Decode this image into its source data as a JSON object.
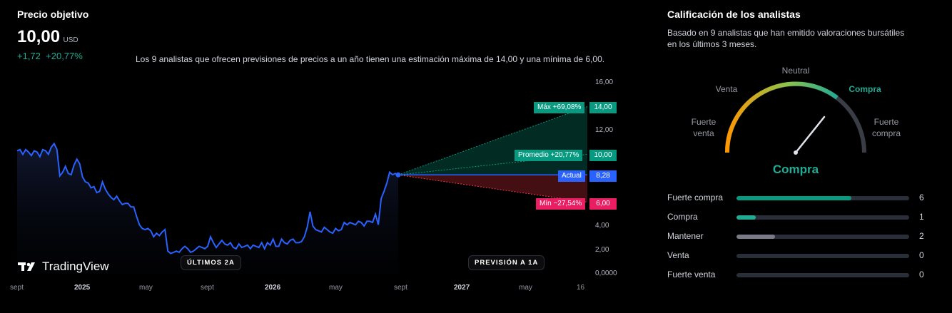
{
  "target": {
    "title": "Precio objetivo",
    "price": "10,00",
    "currency": "USD",
    "change_abs": "+1,72",
    "change_pct": "+20,77%",
    "note": "Los 9 analistas que ofrecen previsiones de precios a un año tienen una estimación máxima de 14,00 y una mínima de 6,00."
  },
  "chart": {
    "y_ticks": [
      "16,00",
      "12,00",
      "4,00",
      "2,00",
      "0,0000"
    ],
    "x_ticks": [
      {
        "label": "sept",
        "bold": false
      },
      {
        "label": "2025",
        "bold": true
      },
      {
        "label": "may",
        "bold": false
      },
      {
        "label": "sept",
        "bold": false
      },
      {
        "label": "2026",
        "bold": true
      },
      {
        "label": "may",
        "bold": false
      },
      {
        "label": "sept",
        "bold": false
      },
      {
        "label": "2027",
        "bold": true
      },
      {
        "label": "may",
        "bold": false
      },
      {
        "label": "16",
        "bold": false
      }
    ],
    "pill_past": "ÚLTIMOS 2A",
    "pill_forecast": "PREVISIÓN A 1A",
    "brand": "TradingView",
    "tags": {
      "max": {
        "label": "Máx +69,08%",
        "value": "14,00"
      },
      "avg": {
        "label": "Promedio +20,77%",
        "value": "10,00"
      },
      "current": {
        "label": "Actual",
        "value": "8,28"
      },
      "min": {
        "label": "Mín −27,54%",
        "value": "6,00"
      }
    },
    "colors": {
      "line": "#2962ff",
      "max": "#089981",
      "min": "#f23645",
      "current": "#2962ff"
    }
  },
  "chart_data": {
    "type": "line",
    "ylim": [
      0,
      16
    ],
    "series": [
      {
        "values": [
          10.3,
          10.4,
          10.0,
          10.4,
          10.2,
          9.9,
          10.3,
          10.2,
          9.8,
          10.4,
          10.3,
          10.0,
          10.6,
          10.9,
          10.4,
          8.2,
          8.5,
          9.0,
          8.4,
          8.3,
          9.1,
          9.6,
          9.2,
          8.1,
          7.7,
          7.6,
          7.2,
          7.3,
          6.8,
          6.9,
          7.7,
          7.1,
          6.7,
          6.4,
          6.2,
          6.5,
          6.1,
          5.8,
          5.9,
          5.9,
          5.6,
          5.6,
          4.8,
          4.1,
          3.8,
          3.7,
          3.8,
          3.6,
          3.1,
          3.4,
          3.2,
          3.5,
          3.7,
          1.9,
          1.7,
          1.8,
          1.9,
          1.8,
          2.1,
          2.3,
          2.1,
          1.8,
          1.9,
          2.1,
          2.3,
          2.2,
          2.1,
          2.3,
          3.1,
          2.6,
          2.2,
          2.5,
          2.8,
          2.5,
          2.4,
          2.6,
          2.2,
          2.1,
          2.5,
          2.2,
          2.3,
          2.4,
          2.1,
          2.4,
          2.3,
          2.2,
          2.6,
          2.1,
          2.6,
          2.4,
          2.9,
          2.3,
          2.3,
          2.9,
          2.6,
          2.5,
          2.8,
          2.9,
          2.6,
          2.6,
          2.7,
          3.1,
          3.9,
          5.2,
          4.0,
          3.7,
          3.6,
          3.5,
          3.9,
          3.7,
          3.5,
          3.4,
          3.8,
          3.6,
          3.7,
          4.3,
          4.1,
          4.3,
          4.2,
          4.1,
          4.4,
          4.3,
          4.0,
          4.4,
          4.4,
          4.3,
          5.0,
          4.1,
          6.3,
          6.9,
          7.6,
          8.5,
          8.3,
          8.4,
          8.28
        ]
      }
    ],
    "forecast": {
      "max": 14.0,
      "avg": 10.0,
      "current": 8.28,
      "min": 6.0
    }
  },
  "ratings": {
    "title": "Calificación de los analistas",
    "subtitle_1": "Basado en 9 analistas que han emitido valoraciones bursátiles",
    "subtitle_2": "en los últimos 3 meses.",
    "gauge": {
      "neutral": "Neutral",
      "venta": "Venta",
      "compra": "Compra",
      "fuerte_venta_1": "Fuerte",
      "fuerte_venta_2": "venta",
      "fuerte_compra_1": "Fuerte",
      "fuerte_compra_2": "compra",
      "result": "Compra"
    },
    "bars": [
      {
        "label": "Fuerte compra",
        "count": "6",
        "fraction": 0.667,
        "color": "#089981"
      },
      {
        "label": "Compra",
        "count": "1",
        "fraction": 0.111,
        "color": "#22ab94"
      },
      {
        "label": "Mantener",
        "count": "2",
        "fraction": 0.222,
        "color": "#787b86"
      },
      {
        "label": "Venta",
        "count": "0",
        "fraction": 0,
        "color": "#f23645"
      },
      {
        "label": "Fuerte venta",
        "count": "0",
        "fraction": 0,
        "color": "#f23645"
      }
    ]
  }
}
